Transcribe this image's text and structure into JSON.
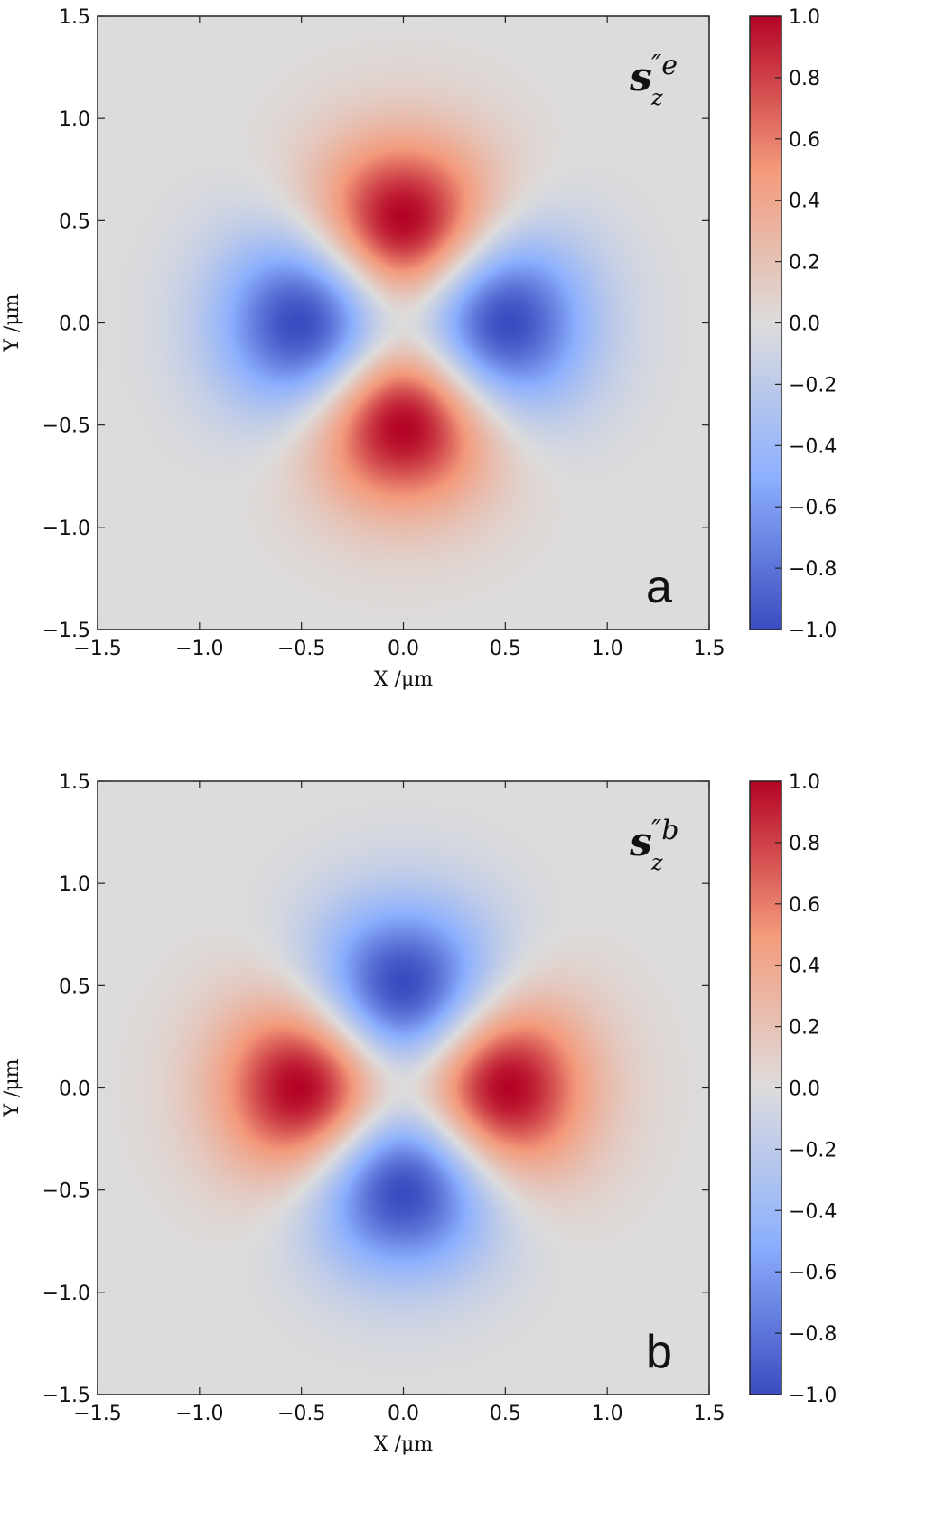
{
  "chart_data": [
    {
      "type": "heatmap",
      "panel_label": "a",
      "annotation": {
        "symbol": "s",
        "subscript": "z",
        "superscript": "″e"
      },
      "xlabel": "X /μm",
      "ylabel": "Y /μm",
      "xlim": [
        -1.5,
        1.5
      ],
      "ylim": [
        -1.5,
        1.5
      ],
      "x_ticks": [
        "−1.5",
        "−1.0",
        "−0.5",
        "0.0",
        "0.5",
        "1.0",
        "1.5"
      ],
      "y_ticks": [
        "−1.5",
        "−1.0",
        "−0.5",
        "0.0",
        "0.5",
        "1.0",
        "1.5"
      ],
      "colorbar": {
        "range": [
          -1.0,
          1.0
        ],
        "ticks": [
          "−1.0",
          "−0.8",
          "−0.6",
          "−0.4",
          "−0.2",
          "0.0",
          "0.2",
          "0.4",
          "0.6",
          "0.8",
          "1.0"
        ],
        "colormap": "coolwarm"
      },
      "lobes": [
        {
          "x": 0.0,
          "y": 0.52,
          "value": 1.0
        },
        {
          "x": 0.0,
          "y": -0.52,
          "value": 1.0
        },
        {
          "x": -0.52,
          "y": 0.0,
          "value": -1.0
        },
        {
          "x": 0.52,
          "y": 0.0,
          "value": -1.0
        }
      ]
    },
    {
      "type": "heatmap",
      "panel_label": "b",
      "annotation": {
        "symbol": "s",
        "subscript": "z",
        "superscript": "″b"
      },
      "xlabel": "X /μm",
      "ylabel": "Y /μm",
      "xlim": [
        -1.5,
        1.5
      ],
      "ylim": [
        -1.5,
        1.5
      ],
      "x_ticks": [
        "−1.5",
        "−1.0",
        "−0.5",
        "0.0",
        "0.5",
        "1.0",
        "1.5"
      ],
      "y_ticks": [
        "−1.5",
        "−1.0",
        "−0.5",
        "0.0",
        "0.5",
        "1.0",
        "1.5"
      ],
      "colorbar": {
        "range": [
          -1.0,
          1.0
        ],
        "ticks": [
          "−1.0",
          "−0.8",
          "−0.6",
          "−0.4",
          "−0.2",
          "0.0",
          "0.2",
          "0.4",
          "0.6",
          "0.8",
          "1.0"
        ],
        "colormap": "coolwarm"
      },
      "lobes": [
        {
          "x": 0.0,
          "y": 0.52,
          "value": -1.0
        },
        {
          "x": 0.0,
          "y": -0.52,
          "value": -1.0
        },
        {
          "x": -0.52,
          "y": 0.0,
          "value": 1.0
        },
        {
          "x": 0.52,
          "y": 0.0,
          "value": 1.0
        }
      ]
    }
  ]
}
